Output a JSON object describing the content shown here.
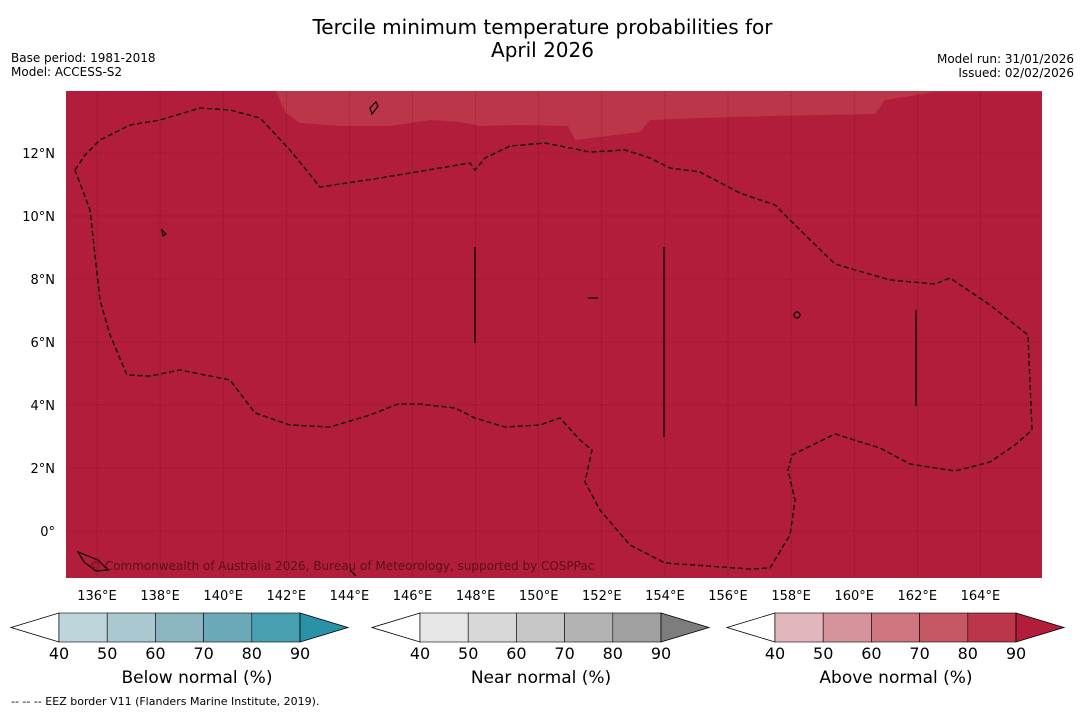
{
  "title_line1": "Tercile minimum temperature probabilities for",
  "title_line2": "April 2026",
  "meta_left": {
    "base_period": "Base period: 1981-2018",
    "model": "Model: ACCESS-S2"
  },
  "meta_right": {
    "model_run": "Model run: 31/01/2026",
    "issued": "Issued: 02/02/2026"
  },
  "map": {
    "copyright": "© Commonwealth of Australia 2026, Bureau of Meteorology, supported by COSPPac",
    "lat_labels": [
      "12°N",
      "10°N",
      "8°N",
      "6°N",
      "4°N",
      "2°N",
      "0°"
    ],
    "lon_labels": [
      "136°E",
      "138°E",
      "140°E",
      "142°E",
      "144°E",
      "146°E",
      "148°E",
      "150°E",
      "152°E",
      "154°E",
      "156°E",
      "158°E",
      "160°E",
      "162°E",
      "164°E"
    ],
    "main_color": "#b11d3a",
    "light_color": "#bc3649"
  },
  "colorbars": [
    {
      "title": "Below normal (%)",
      "ticks": [
        "40",
        "50",
        "60",
        "70",
        "80",
        "90"
      ],
      "colors": [
        "#ffffff",
        "#bfd5dc",
        "#a9c8cf",
        "#8bb5c0",
        "#6aaab8",
        "#47a0b2",
        "#2a91a6"
      ]
    },
    {
      "title": "Near normal (%)",
      "ticks": [
        "40",
        "50",
        "60",
        "70",
        "80",
        "90"
      ],
      "colors": [
        "#ffffff",
        "#e6e6e6",
        "#d8d8d8",
        "#c7c7c7",
        "#b3b3b3",
        "#a0a0a0",
        "#7d7d7d"
      ]
    },
    {
      "title": "Above normal (%)",
      "ticks": [
        "40",
        "50",
        "60",
        "70",
        "80",
        "90"
      ],
      "colors": [
        "#ffffff",
        "#e1b6bd",
        "#d6939c",
        "#ce7580",
        "#c65866",
        "#bc3649",
        "#b11d3a"
      ]
    }
  ],
  "footer": "--  --  -- EEZ border V11 (Flanders Marine Institute, 2019)."
}
